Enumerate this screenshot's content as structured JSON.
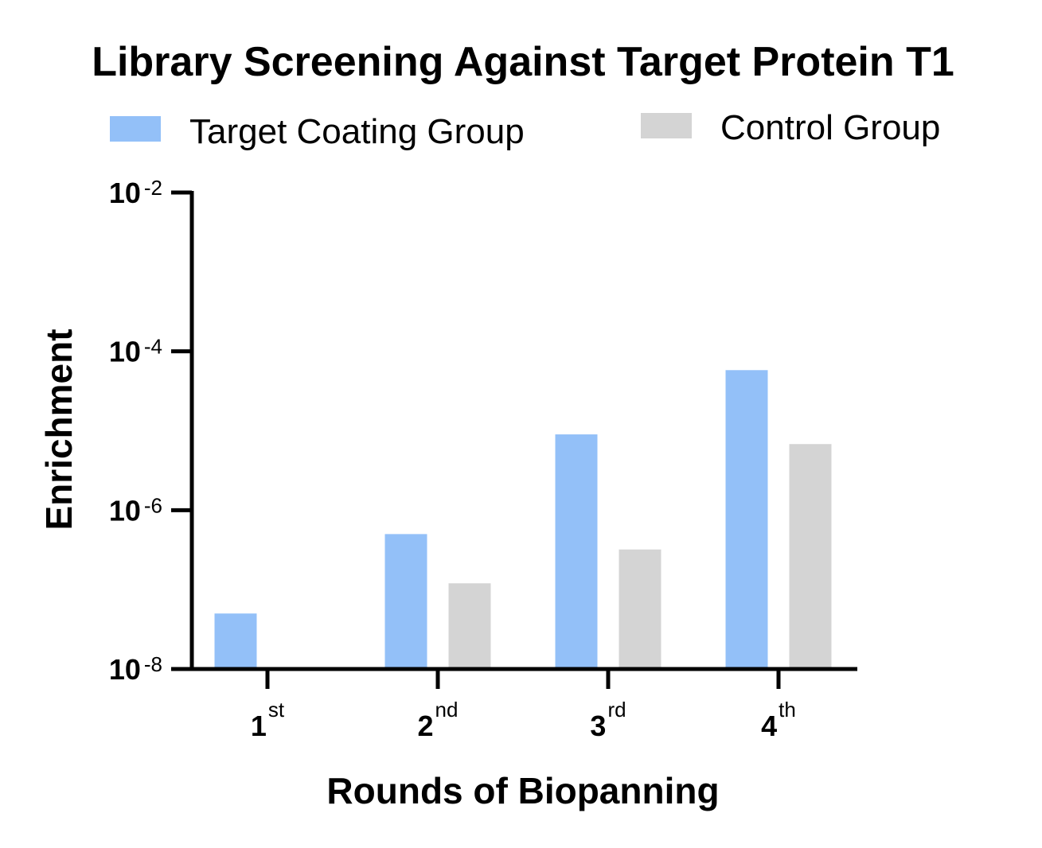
{
  "chart_data": {
    "type": "bar",
    "title": "Library Screening Against Target Protein T1",
    "xlabel": "Rounds of Biopanning",
    "ylabel": "Enrichment",
    "yscale": "log",
    "ylim": [
      1e-08,
      0.01
    ],
    "yticks": [
      {
        "value": 1e-08,
        "base": "10",
        "exp": "-8"
      },
      {
        "value": 1e-06,
        "base": "10",
        "exp": "-6"
      },
      {
        "value": 0.0001,
        "base": "10",
        "exp": "-4"
      },
      {
        "value": 0.01,
        "base": "10",
        "exp": "-2"
      }
    ],
    "categories": [
      {
        "num": "1",
        "sup": "st"
      },
      {
        "num": "2",
        "sup": "nd"
      },
      {
        "num": "3",
        "sup": "rd"
      },
      {
        "num": "4",
        "sup": "th"
      }
    ],
    "series": [
      {
        "name": "Target Coating Group",
        "color": "#93c0f8",
        "values": [
          5e-08,
          5e-07,
          9e-06,
          5.8e-05
        ]
      },
      {
        "name": "Control Group",
        "color": "#d4d4d4",
        "values": [
          null,
          1.2e-07,
          3.2e-07,
          6.8e-06
        ]
      }
    ],
    "legend_position": "top",
    "grid": false
  }
}
